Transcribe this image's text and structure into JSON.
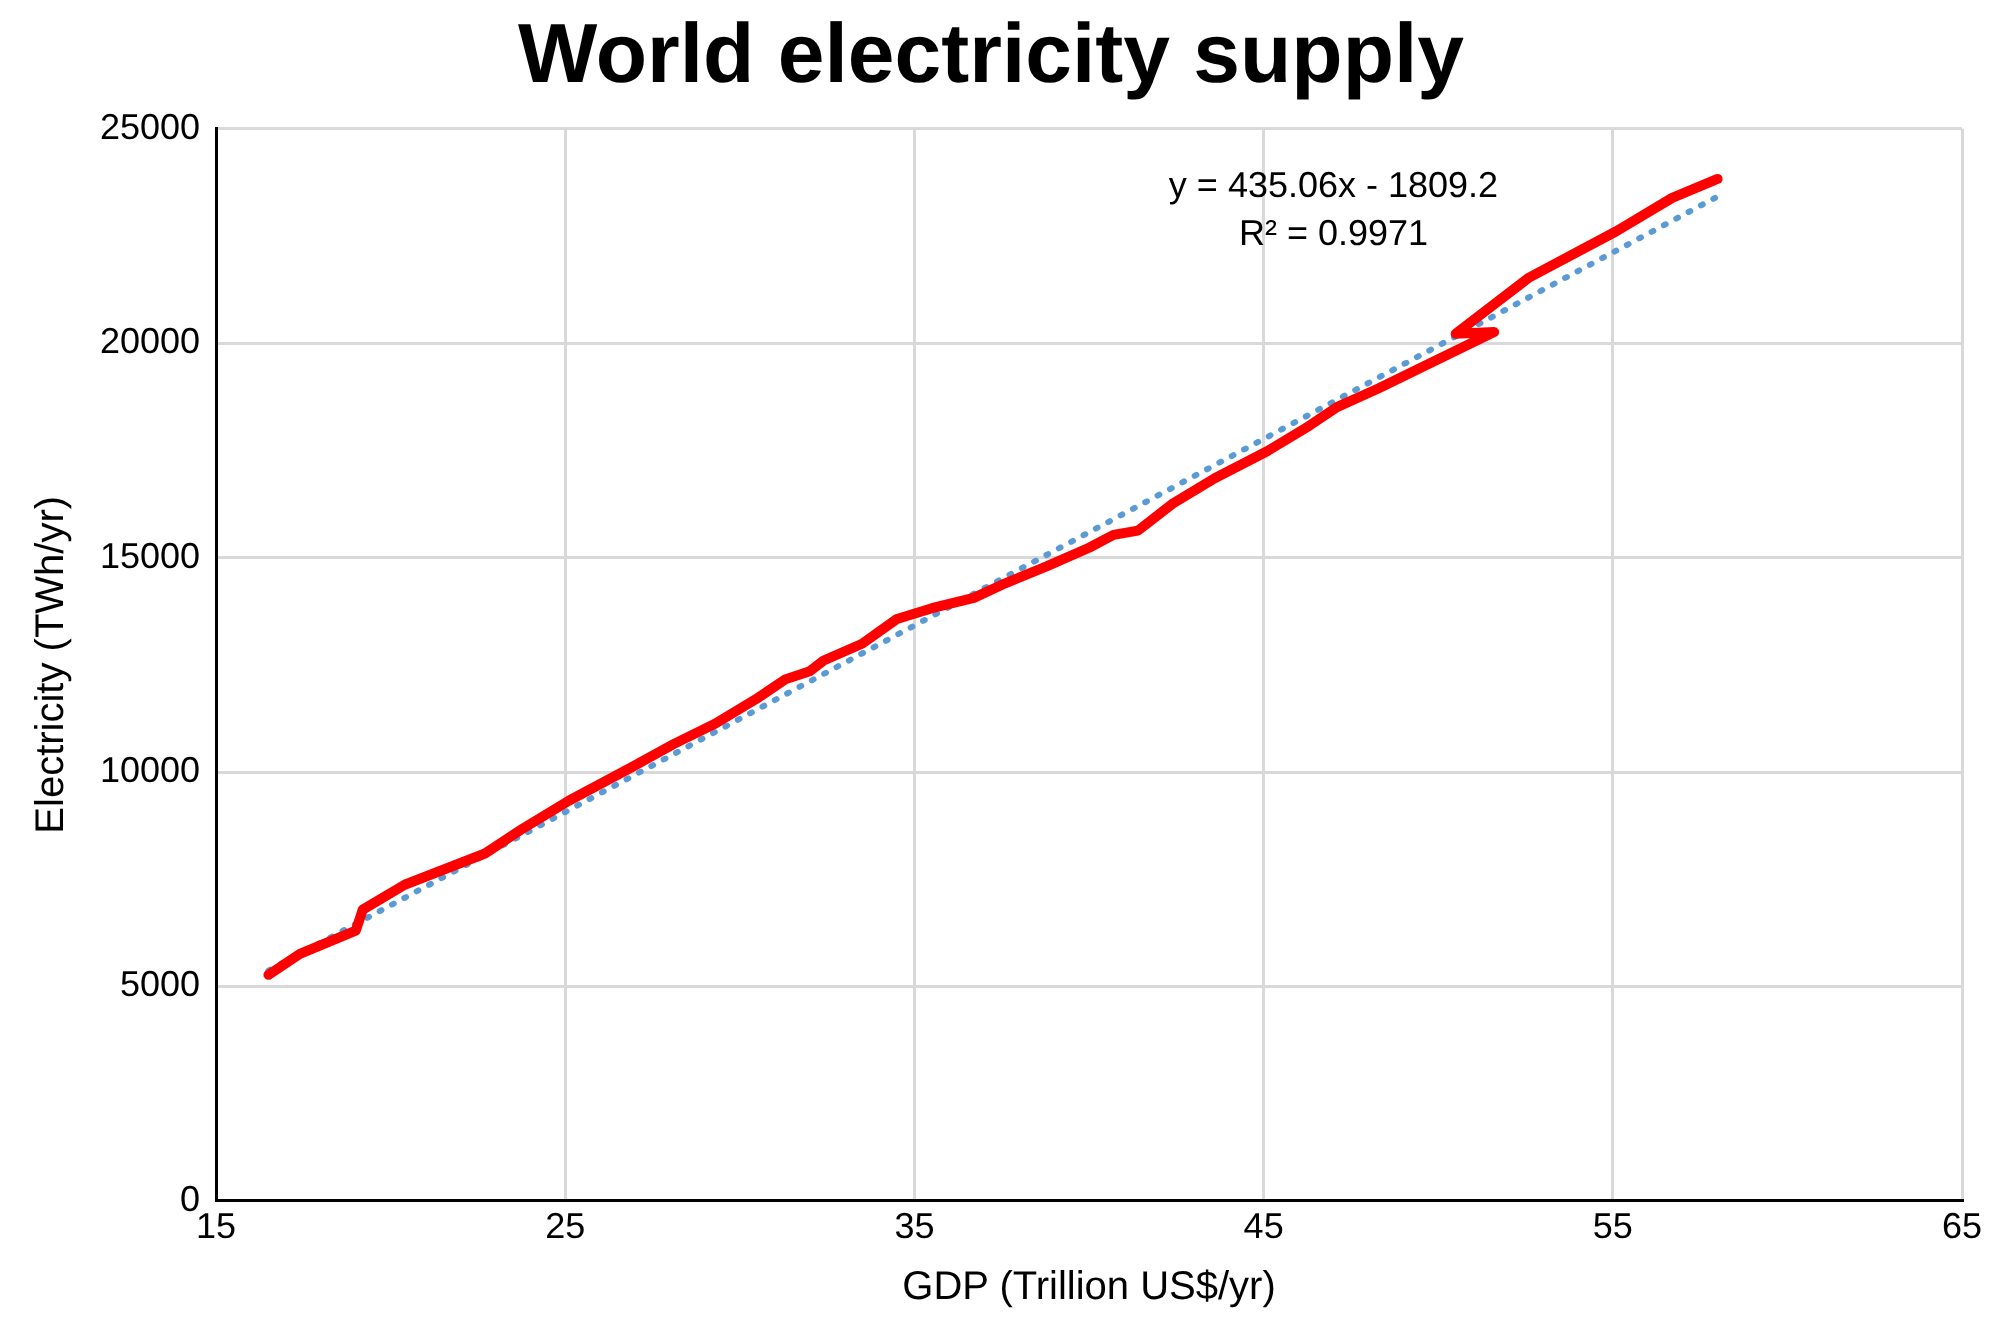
{
  "chart_data": {
    "type": "line",
    "title": "World electricity supply",
    "xlabel": "GDP (Trillion US$/yr)",
    "ylabel": "Electricity (TWh/yr)",
    "annotations": [
      "y = 435.06x - 1809.2",
      "R² = 0.9971"
    ],
    "series": [
      {
        "color": "#ff0000",
        "line_style": "solid",
        "x": [
          16.5,
          17.4,
          19.0,
          19.2,
          20.4,
          22.7,
          23.8,
          25.1,
          26.9,
          28.1,
          29.3,
          30.5,
          31.3,
          32.0,
          32.4,
          33.5,
          34.5,
          35.5,
          36.7,
          37.6,
          38.8,
          40.0,
          40.7,
          41.4,
          42.4,
          43.6,
          45.1,
          46.3,
          47.1,
          48.3,
          49.5,
          51.0,
          51.6,
          50.5,
          52.6,
          55.1,
          56.7,
          58.0
        ],
        "values": [
          5270,
          5760,
          6300,
          6790,
          7370,
          8100,
          8690,
          9330,
          10110,
          10650,
          11130,
          11720,
          12160,
          12350,
          12600,
          12990,
          13570,
          13820,
          14060,
          14400,
          14800,
          15230,
          15530,
          15630,
          16260,
          16850,
          17480,
          18070,
          18510,
          18950,
          19430,
          20020,
          20260,
          20220,
          21530,
          22610,
          23390,
          23830
        ]
      },
      {
        "color": "#5b9bd5",
        "line_style": "dotted",
        "x": [
          16.5,
          58.0
        ],
        "values": [
          5370,
          23420
        ]
      }
    ],
    "xlim": [
      15,
      65
    ],
    "xticks": [
      15,
      25,
      35,
      45,
      55,
      65
    ],
    "ylim": [
      0,
      25000
    ],
    "yticks": [
      0,
      5000,
      10000,
      15000,
      20000,
      25000
    ],
    "grid": true,
    "legend": false,
    "marker": "none"
  }
}
